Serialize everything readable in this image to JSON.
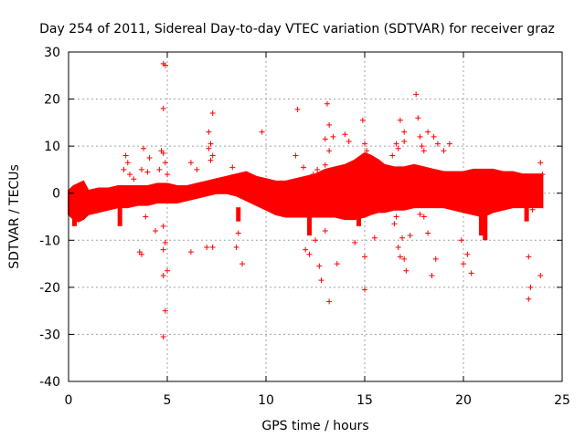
{
  "chart_data": {
    "type": "scatter",
    "title": "Day 254 of 2011, Sidereal Day-to-day VTEC variation (SDTVAR) for receiver graz",
    "xlabel": "GPS time / hours",
    "ylabel": "SDTVAR / TECUs",
    "xlim": [
      0,
      25
    ],
    "ylim": [
      -40,
      30
    ],
    "xticks": [
      0,
      5,
      10,
      15,
      20,
      25
    ],
    "yticks": [
      -40,
      -30,
      -20,
      -10,
      0,
      10,
      20,
      30
    ],
    "grid": true,
    "color": "#ff0000",
    "marker": "plus",
    "band": {
      "x": [
        0,
        0.25,
        0.5,
        0.75,
        1,
        1.5,
        2,
        2.5,
        3,
        3.5,
        4,
        4.5,
        5,
        5.5,
        6,
        6.5,
        7,
        7.5,
        8,
        8.5,
        9,
        9.5,
        10,
        10.5,
        11,
        11.5,
        12,
        12.5,
        13,
        13.5,
        14,
        14.5,
        15,
        15.3,
        15.7,
        16,
        16.5,
        17,
        17.5,
        18,
        18.5,
        19,
        19.5,
        20,
        20.5,
        21,
        21.5,
        22,
        22.5,
        23,
        23.5,
        24
      ],
      "upper": [
        0.5,
        1.5,
        2.0,
        2.5,
        0.5,
        1.0,
        1.0,
        1.5,
        1.5,
        1.5,
        1.5,
        2.0,
        2.0,
        1.5,
        1.5,
        2.0,
        2.5,
        3.0,
        3.5,
        4.0,
        4.5,
        3.5,
        3.0,
        2.5,
        2.5,
        3.0,
        3.5,
        4.0,
        5.0,
        5.5,
        6.0,
        7.0,
        8.5,
        8.0,
        7.0,
        6.0,
        5.5,
        5.5,
        6.0,
        5.5,
        5.0,
        4.5,
        4.5,
        4.5,
        5.0,
        5.0,
        5.0,
        4.5,
        4.5,
        4.0,
        4.0,
        4.0
      ],
      "lower": [
        -4.5,
        -5.5,
        -6.0,
        -5.5,
        -4.5,
        -4.0,
        -3.5,
        -3.0,
        -3.0,
        -2.5,
        -2.5,
        -2.0,
        -2.0,
        -2.0,
        -1.5,
        -1.0,
        -0.5,
        0.0,
        0.0,
        -0.5,
        -1.5,
        -2.5,
        -3.5,
        -4.5,
        -5.0,
        -5.0,
        -5.0,
        -5.0,
        -5.0,
        -5.0,
        -5.5,
        -5.5,
        -5.0,
        -4.5,
        -4.0,
        -4.0,
        -3.5,
        -3.5,
        -3.0,
        -3.0,
        -3.0,
        -3.0,
        -3.5,
        -4.0,
        -4.5,
        -5.0,
        -4.0,
        -3.5,
        -3.0,
        -3.0,
        -3.0,
        -3.0
      ]
    },
    "dips": [
      {
        "x": 20.9,
        "y": [
          -2,
          -9
        ]
      },
      {
        "x": 21.1,
        "y": [
          -2,
          -10
        ]
      },
      {
        "x": 23.2,
        "y": [
          -3,
          -6
        ]
      },
      {
        "x": 12.2,
        "y": [
          -4,
          -9
        ]
      },
      {
        "x": 14.7,
        "y": [
          -4,
          -7
        ]
      },
      {
        "x": 8.6,
        "y": [
          -3,
          -6
        ]
      },
      {
        "x": 2.6,
        "y": [
          -3,
          -7
        ]
      },
      {
        "x": 0.3,
        "y": [
          -4,
          -7
        ]
      }
    ],
    "outliers": [
      [
        4.8,
        27.5
      ],
      [
        4.9,
        27.2
      ],
      [
        4.8,
        18.0
      ],
      [
        4.7,
        9.0
      ],
      [
        4.8,
        8.5
      ],
      [
        4.9,
        6.5
      ],
      [
        4.6,
        5.0
      ],
      [
        5.0,
        4.0
      ],
      [
        4.8,
        -7.0
      ],
      [
        4.9,
        -10.5
      ],
      [
        4.8,
        -12.0
      ],
      [
        5.0,
        -16.5
      ],
      [
        4.8,
        -17.5
      ],
      [
        4.9,
        -25.0
      ],
      [
        4.8,
        -30.5
      ],
      [
        2.9,
        8.0
      ],
      [
        3.0,
        6.5
      ],
      [
        2.8,
        5.0
      ],
      [
        3.1,
        4.0
      ],
      [
        3.3,
        3.0
      ],
      [
        3.8,
        9.5
      ],
      [
        4.1,
        7.5
      ],
      [
        3.7,
        5.0
      ],
      [
        4.0,
        4.5
      ],
      [
        3.6,
        -12.5
      ],
      [
        3.7,
        -13.0
      ],
      [
        3.9,
        -5.0
      ],
      [
        4.4,
        -8.0
      ],
      [
        6.2,
        6.5
      ],
      [
        6.5,
        5.0
      ],
      [
        6.2,
        -12.5
      ],
      [
        7.1,
        13.0
      ],
      [
        7.2,
        10.5
      ],
      [
        7.1,
        9.5
      ],
      [
        7.3,
        8.0
      ],
      [
        7.2,
        7.0
      ],
      [
        7.3,
        17.0
      ],
      [
        7.0,
        -11.5
      ],
      [
        7.3,
        -11.5
      ],
      [
        8.3,
        5.5
      ],
      [
        8.5,
        -11.5
      ],
      [
        8.8,
        -15.0
      ],
      [
        8.6,
        -8.5
      ],
      [
        9.8,
        13.0
      ],
      [
        11.5,
        8.0
      ],
      [
        11.6,
        17.8
      ],
      [
        11.9,
        5.5
      ],
      [
        12.4,
        4.0
      ],
      [
        12.0,
        -12.0
      ],
      [
        12.2,
        -13.0
      ],
      [
        12.5,
        -10.0
      ],
      [
        13.1,
        19.0
      ],
      [
        13.2,
        14.5
      ],
      [
        13.0,
        11.5
      ],
      [
        13.4,
        12.0
      ],
      [
        13.2,
        9.0
      ],
      [
        13.0,
        6.0
      ],
      [
        12.6,
        5.0
      ],
      [
        13.5,
        4.5
      ],
      [
        12.7,
        -15.5
      ],
      [
        12.8,
        -18.5
      ],
      [
        13.0,
        -8.0
      ],
      [
        13.2,
        -23.0
      ],
      [
        13.6,
        -15.0
      ],
      [
        14.5,
        -10.5
      ],
      [
        14.0,
        12.5
      ],
      [
        14.2,
        11.0
      ],
      [
        14.9,
        15.5
      ],
      [
        15.0,
        10.5
      ],
      [
        15.1,
        9.0
      ],
      [
        14.7,
        5.0
      ],
      [
        15.0,
        -13.5
      ],
      [
        15.0,
        -20.5
      ],
      [
        15.5,
        -9.5
      ],
      [
        16.8,
        15.5
      ],
      [
        17.0,
        13.0
      ],
      [
        16.6,
        10.5
      ],
      [
        16.7,
        9.5
      ],
      [
        17.0,
        11.0
      ],
      [
        16.4,
        8.0
      ],
      [
        16.6,
        -5.0
      ],
      [
        16.7,
        -11.5
      ],
      [
        16.8,
        -13.5
      ],
      [
        16.9,
        -9.5
      ],
      [
        17.1,
        -16.5
      ],
      [
        17.0,
        -14.0
      ],
      [
        16.5,
        -6.5
      ],
      [
        17.3,
        -9.0
      ],
      [
        17.6,
        21.0
      ],
      [
        17.7,
        16.0
      ],
      [
        17.8,
        12.0
      ],
      [
        17.9,
        10.0
      ],
      [
        18.0,
        9.0
      ],
      [
        18.2,
        13.0
      ],
      [
        18.5,
        12.0
      ],
      [
        18.7,
        10.5
      ],
      [
        19.0,
        9.0
      ],
      [
        19.3,
        10.5
      ],
      [
        17.8,
        -4.5
      ],
      [
        18.0,
        -5.0
      ],
      [
        18.2,
        -8.5
      ],
      [
        18.4,
        -17.5
      ],
      [
        18.6,
        -14.0
      ],
      [
        18.5,
        -2.5
      ],
      [
        19.9,
        -10.0
      ],
      [
        20.0,
        -15.0
      ],
      [
        20.2,
        -13.0
      ],
      [
        20.4,
        -17.0
      ],
      [
        21.7,
        -3.0
      ],
      [
        23.3,
        -13.5
      ],
      [
        23.4,
        -20.0
      ],
      [
        23.3,
        -22.5
      ],
      [
        23.9,
        6.5
      ],
      [
        23.9,
        -17.5
      ],
      [
        24.0,
        4.0
      ],
      [
        23.5,
        -3.5
      ]
    ]
  }
}
